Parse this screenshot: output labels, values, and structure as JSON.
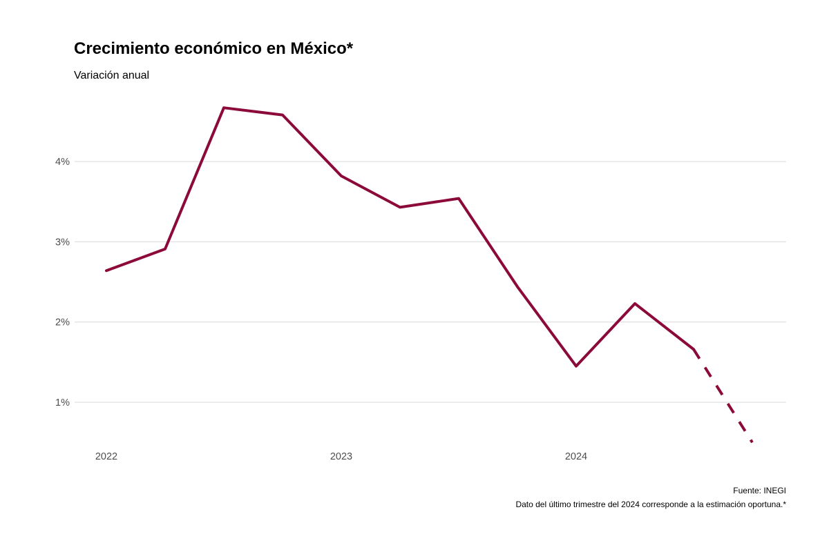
{
  "chart_data": {
    "type": "line",
    "title": "Crecimiento económico en México*",
    "subtitle": "Variación anual",
    "xlabel": "",
    "ylabel": "",
    "x": [
      "2022-Q1",
      "2022-Q2",
      "2022-Q3",
      "2022-Q4",
      "2023-Q1",
      "2023-Q2",
      "2023-Q3",
      "2023-Q4",
      "2024-Q1",
      "2024-Q2",
      "2024-Q3",
      "2024-Q4"
    ],
    "series": [
      {
        "values": [
          2.64,
          2.91,
          4.67,
          4.58,
          3.82,
          3.43,
          3.54,
          2.44,
          1.45,
          2.23,
          1.66,
          0.5
        ],
        "color": "#8B0A3A",
        "estimated_from_index": 10,
        "estimated_style": "dashed"
      }
    ],
    "x_tick_labels": [
      "2022",
      "2023",
      "2024"
    ],
    "y_ticks": [
      1,
      2,
      3,
      4
    ],
    "y_tick_labels": [
      "1%",
      "2%",
      "3%",
      "4%"
    ],
    "ylim": [
      0.4,
      4.8
    ],
    "grid": "horizontal",
    "legend": "none",
    "source": "Fuente: INEGI",
    "note": "Dato del último trimestre del 2024 corresponde a la estimación oportuna.*"
  }
}
